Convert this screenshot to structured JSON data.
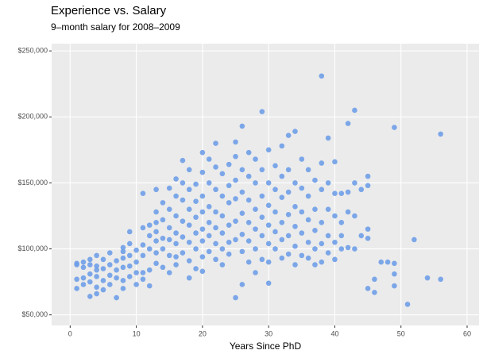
{
  "chart_data": {
    "type": "scatter",
    "title": "Experience vs. Salary",
    "subtitle": "9–month salary for 2008–2009",
    "x_label": "Years Since PhD",
    "color": "#6f9ee8",
    "grid": true,
    "xlim": [
      -2.8,
      61.8
    ],
    "ylim": [
      42000,
      255500
    ],
    "xticks": [
      0,
      10,
      20,
      30,
      40,
      50,
      60
    ],
    "yticks": [
      {
        "value": 50000,
        "label": "$50,000"
      },
      {
        "value": 100000,
        "label": "$100,000"
      },
      {
        "value": 150000,
        "label": "$150,000"
      },
      {
        "value": 200000,
        "label": "$200,000"
      },
      {
        "value": 250000,
        "label": "$250,000"
      }
    ],
    "x": [
      1,
      1,
      1,
      1,
      2,
      2,
      2,
      2,
      3,
      3,
      3,
      3,
      3,
      4,
      4,
      4,
      4,
      4,
      4,
      5,
      5,
      5,
      5,
      6,
      6,
      6,
      6,
      7,
      7,
      7,
      7,
      8,
      8,
      8,
      8,
      8,
      8,
      9,
      9,
      9,
      9,
      9,
      10,
      10,
      10,
      10,
      11,
      11,
      11,
      11,
      11,
      11,
      12,
      12,
      12,
      12,
      12,
      13,
      13,
      13,
      13,
      13,
      13,
      13,
      14,
      14,
      14,
      14,
      14,
      15,
      15,
      15,
      15,
      15,
      15,
      16,
      16,
      16,
      16,
      16,
      16,
      16,
      17,
      17,
      17,
      17,
      17,
      17,
      18,
      18,
      18,
      18,
      18,
      18,
      18,
      19,
      19,
      19,
      19,
      19,
      19,
      20,
      20,
      20,
      20,
      20,
      20,
      20,
      20,
      21,
      21,
      21,
      21,
      21,
      21,
      22,
      22,
      22,
      22,
      22,
      22,
      22,
      23,
      23,
      23,
      23,
      23,
      23,
      24,
      24,
      24,
      24,
      24,
      24,
      25,
      25,
      25,
      25,
      25,
      25,
      25,
      26,
      26,
      26,
      26,
      26,
      26,
      26,
      27,
      27,
      27,
      27,
      27,
      27,
      28,
      28,
      28,
      28,
      28,
      28,
      29,
      29,
      29,
      29,
      29,
      29,
      30,
      30,
      30,
      30,
      30,
      30,
      30,
      31,
      31,
      31,
      31,
      31,
      32,
      32,
      32,
      32,
      32,
      32,
      33,
      33,
      33,
      33,
      33,
      33,
      34,
      34,
      34,
      34,
      34,
      34,
      35,
      35,
      35,
      35,
      35,
      36,
      36,
      36,
      36,
      36,
      37,
      37,
      37,
      37,
      37,
      38,
      38,
      38,
      38,
      38,
      38,
      39,
      39,
      39,
      39,
      39,
      40,
      40,
      40,
      40,
      40,
      41,
      41,
      41,
      41,
      42,
      42,
      42,
      42,
      43,
      43,
      43,
      43,
      44,
      44,
      45,
      45,
      45,
      45,
      45,
      46,
      46,
      47,
      48,
      49,
      49,
      49,
      49,
      51,
      52,
      54,
      56,
      56
    ],
    "values": [
      88000,
      77000,
      70000,
      89000,
      86000,
      90000,
      78000,
      73000,
      88000,
      81000,
      75000,
      64000,
      92000,
      95000,
      84000,
      79000,
      71000,
      66000,
      87000,
      92000,
      85000,
      76000,
      69000,
      97000,
      88000,
      80000,
      73000,
      91000,
      84000,
      63000,
      78000,
      101000,
      93000,
      86000,
      76000,
      70000,
      98000,
      113000,
      104000,
      95000,
      87000,
      79000,
      99000,
      90000,
      82000,
      73000,
      142000,
      116000,
      103000,
      95000,
      82000,
      77000,
      118000,
      110000,
      100000,
      84000,
      72000,
      128000,
      120000,
      113000,
      106000,
      97000,
      89000,
      145000,
      135000,
      122000,
      108000,
      100000,
      86000,
      146000,
      130000,
      116000,
      107000,
      95000,
      82000,
      153000,
      140000,
      125000,
      112000,
      104000,
      94000,
      88000,
      167000,
      150000,
      137000,
      121000,
      109000,
      97000,
      160000,
      145000,
      130000,
      118000,
      105000,
      91000,
      78000,
      149000,
      136000,
      124000,
      112000,
      100000,
      85000,
      173000,
      158000,
      140000,
      128000,
      115000,
      106000,
      94000,
      83000,
      168000,
      150000,
      132000,
      120000,
      110000,
      98000,
      180000,
      162000,
      145000,
      128000,
      116000,
      104000,
      92000,
      157000,
      140000,
      125000,
      112000,
      100000,
      88000,
      164000,
      148000,
      135000,
      118000,
      105000,
      96000,
      181000,
      170000,
      152000,
      138000,
      121000,
      107000,
      63000,
      193000,
      160000,
      143000,
      127000,
      111000,
      98000,
      73000,
      173000,
      155000,
      137000,
      120000,
      106000,
      90000,
      168000,
      150000,
      130000,
      115000,
      100000,
      82000,
      204000,
      160000,
      140000,
      124000,
      110000,
      92000,
      175000,
      150000,
      133000,
      118000,
      104000,
      90000,
      74000,
      163000,
      145000,
      128000,
      113000,
      100000,
      178000,
      155000,
      139000,
      120000,
      107000,
      93000,
      186000,
      160000,
      143000,
      126000,
      110000,
      96000,
      189000,
      150000,
      132000,
      117000,
      102000,
      88000,
      168000,
      146000,
      128000,
      112000,
      95000,
      160000,
      140000,
      122000,
      105000,
      93000,
      152000,
      130000,
      114000,
      100000,
      88000,
      231000,
      165000,
      145000,
      120000,
      104000,
      90000,
      184000,
      150000,
      130000,
      110000,
      97000,
      166000,
      142000,
      125000,
      105000,
      92000,
      142000,
      120000,
      110000,
      100000,
      195000,
      143000,
      128000,
      101000,
      205000,
      150000,
      125000,
      100000,
      145000,
      110000,
      155000,
      148000,
      115000,
      108000,
      70000,
      77000,
      67000,
      90000,
      90000,
      192000,
      89000,
      81000,
      72000,
      58000,
      107000,
      78000,
      187000,
      77000
    ]
  }
}
